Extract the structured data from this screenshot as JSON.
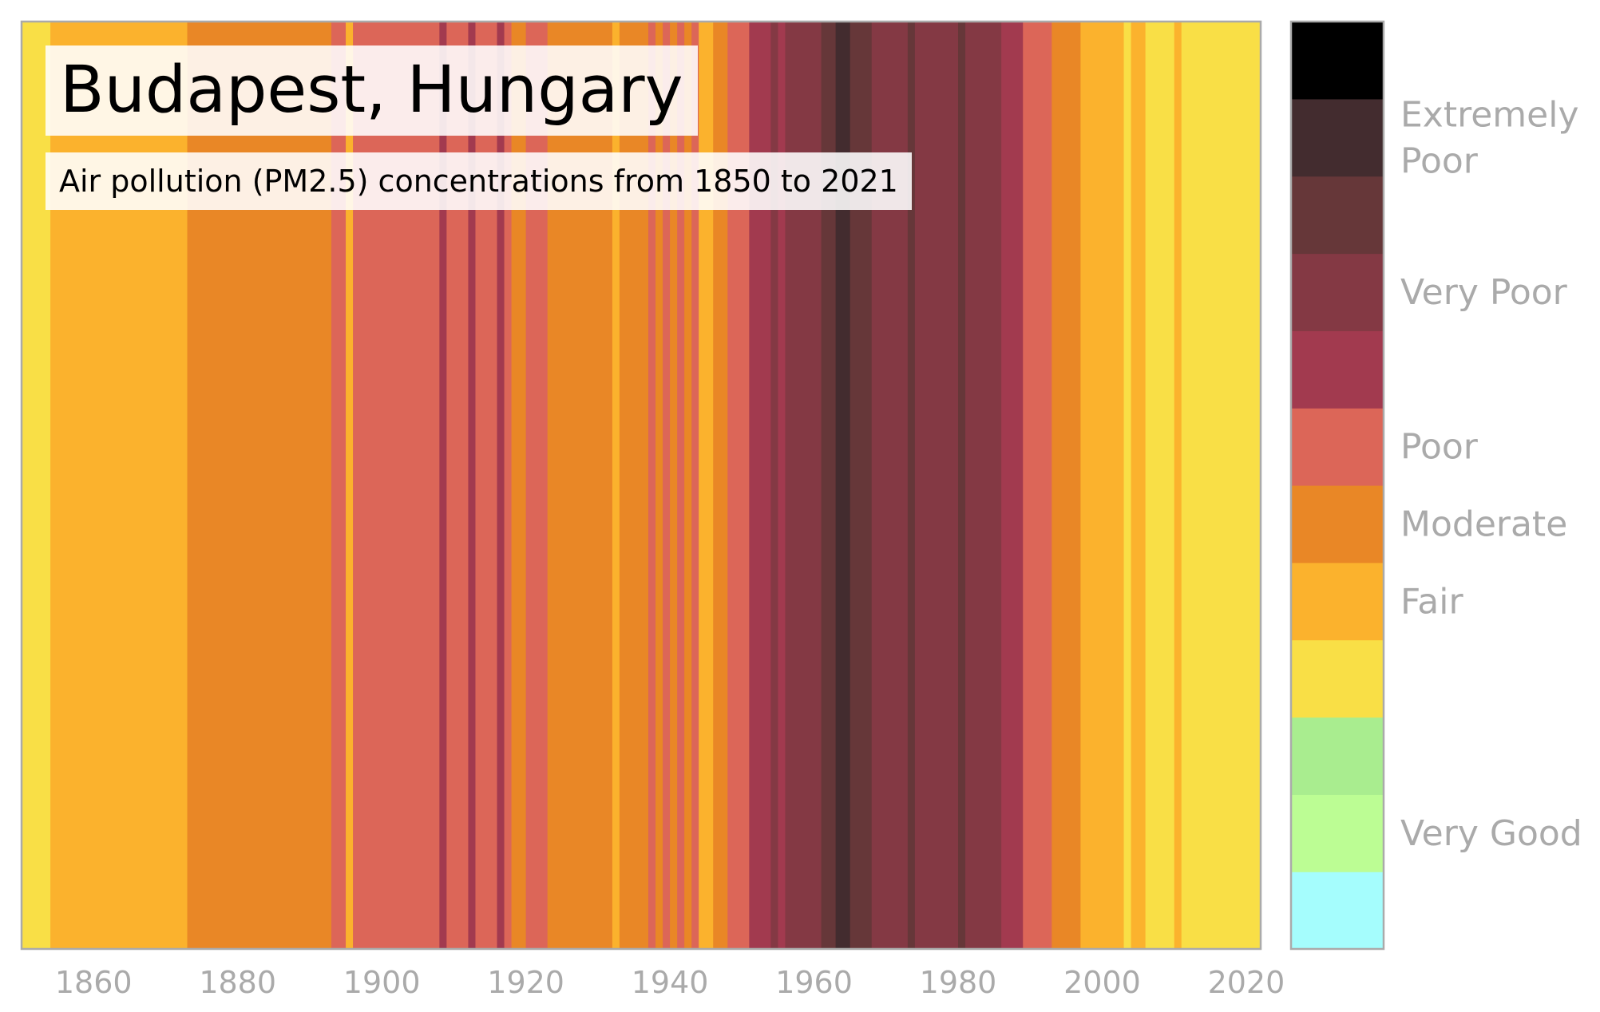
{
  "chart_data": {
    "type": "heatmap",
    "title": "Budapest, Hungary",
    "subtitle": "Air pollution (PM2.5) concentrations from 1850 to 2021",
    "x_ticks": [
      1860,
      1880,
      1900,
      1920,
      1940,
      1960,
      1980,
      2000,
      2020
    ],
    "xlim": [
      1850,
      2022
    ],
    "level_colors": [
      "#a5fdfd",
      "#bcfd94",
      "#a9ed8f",
      "#f9df46",
      "#fbb22d",
      "#e98726",
      "#dc6658",
      "#a23a4f",
      "#843944",
      "#663739",
      "#432c2f",
      "#000000"
    ],
    "colorbar_labels": [
      {
        "text": [
          "Very Good"
        ],
        "level": 1
      },
      {
        "text": [
          "Fair"
        ],
        "level": 4
      },
      {
        "text": [
          "Moderate"
        ],
        "level": 5
      },
      {
        "text": [
          "Poor"
        ],
        "level": 6
      },
      {
        "text": [
          "Very Poor"
        ],
        "level": 8
      },
      {
        "text": [
          "Extremely",
          "Poor"
        ],
        "level": 10
      }
    ],
    "year_levels": [
      [
        1850,
        1854,
        3
      ],
      [
        1854,
        1873,
        4
      ],
      [
        1873,
        1893,
        5
      ],
      [
        1893,
        1895,
        6
      ],
      [
        1895,
        1896,
        4
      ],
      [
        1896,
        1908,
        6
      ],
      [
        1908,
        1909,
        7
      ],
      [
        1909,
        1912,
        6
      ],
      [
        1912,
        1913,
        7
      ],
      [
        1913,
        1916,
        6
      ],
      [
        1916,
        1917,
        7
      ],
      [
        1917,
        1918,
        6
      ],
      [
        1918,
        1920,
        5
      ],
      [
        1920,
        1923,
        6
      ],
      [
        1923,
        1932,
        5
      ],
      [
        1932,
        1933,
        4
      ],
      [
        1933,
        1937,
        5
      ],
      [
        1937,
        1938,
        6
      ],
      [
        1938,
        1939,
        5
      ],
      [
        1939,
        1940,
        6
      ],
      [
        1940,
        1941,
        5
      ],
      [
        1941,
        1942,
        6
      ],
      [
        1942,
        1943,
        5
      ],
      [
        1943,
        1944,
        6
      ],
      [
        1944,
        1946,
        4
      ],
      [
        1946,
        1948,
        5
      ],
      [
        1948,
        1951,
        6
      ],
      [
        1951,
        1954,
        7
      ],
      [
        1954,
        1955,
        8
      ],
      [
        1955,
        1956,
        7
      ],
      [
        1956,
        1961,
        8
      ],
      [
        1961,
        1963,
        9
      ],
      [
        1963,
        1965,
        10
      ],
      [
        1965,
        1968,
        9
      ],
      [
        1968,
        1973,
        8
      ],
      [
        1973,
        1974,
        9
      ],
      [
        1974,
        1980,
        8
      ],
      [
        1980,
        1981,
        9
      ],
      [
        1981,
        1986,
        8
      ],
      [
        1986,
        1989,
        7
      ],
      [
        1989,
        1993,
        6
      ],
      [
        1993,
        1997,
        5
      ],
      [
        1997,
        2003,
        4
      ],
      [
        2003,
        2004,
        3
      ],
      [
        2004,
        2006,
        4
      ],
      [
        2006,
        2010,
        3
      ],
      [
        2010,
        2011,
        4
      ],
      [
        2011,
        2022,
        3
      ]
    ],
    "axis_color": "#aaaaaa",
    "label_color": "#aaaaaa"
  }
}
